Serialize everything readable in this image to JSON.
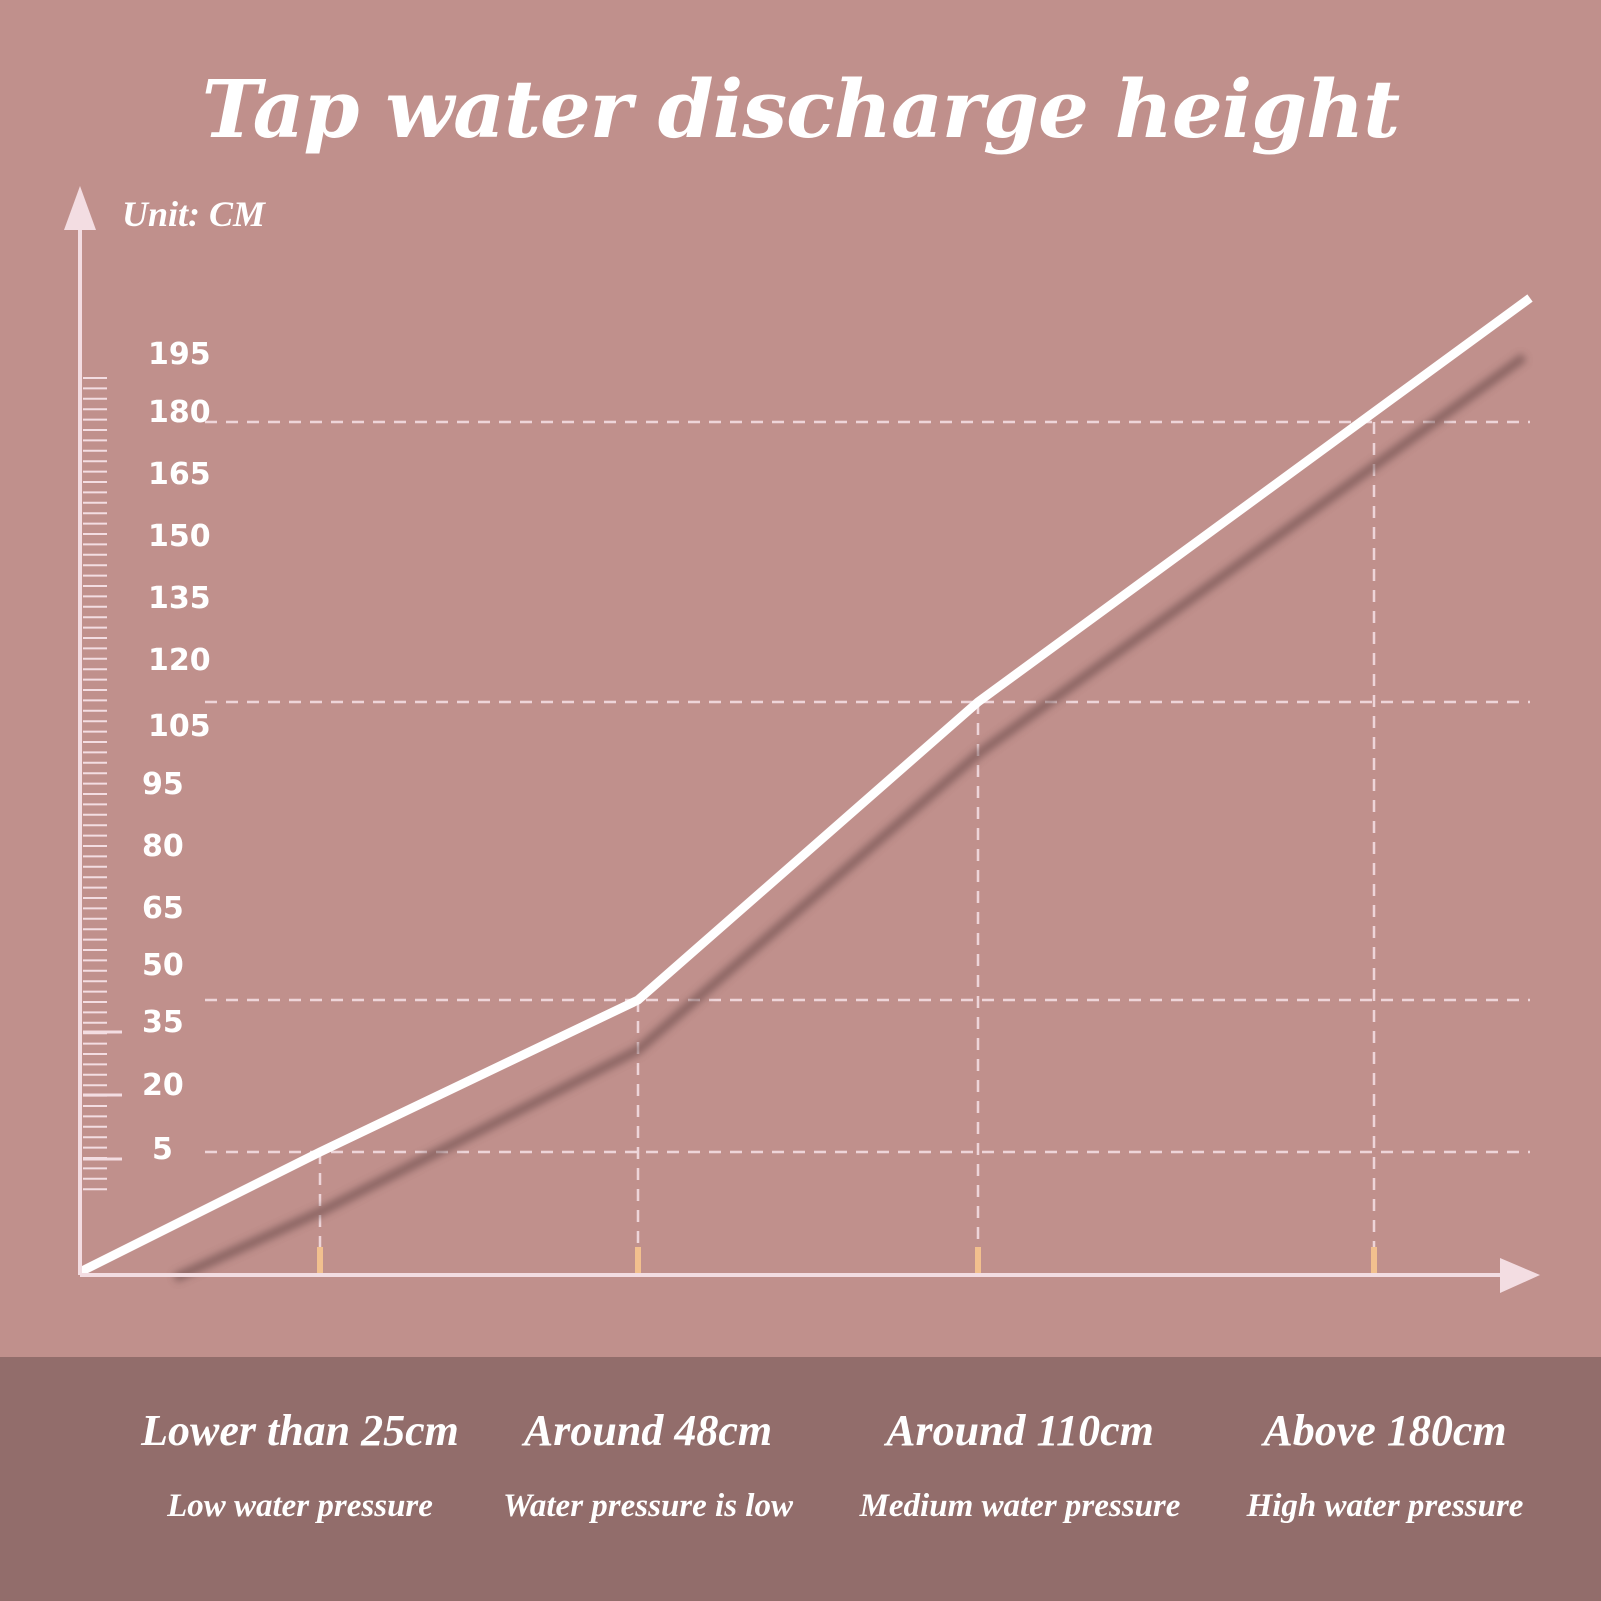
{
  "title": "Tap water discharge height",
  "chart_data": {
    "type": "line",
    "ylabel": "Unit: CM",
    "yticks": [
      5,
      20,
      35,
      50,
      65,
      80,
      95,
      105,
      120,
      135,
      150,
      165,
      180,
      195
    ],
    "ylim": [
      0,
      210
    ],
    "grid": "dashed reference lines",
    "categories": [
      {
        "name": "Lower than 25cm",
        "description": "Low water pressure",
        "value": 25
      },
      {
        "name": "Around 48cm",
        "description": "Water pressure is low",
        "value": 48
      },
      {
        "name": "Around 110cm",
        "description": "Medium water pressure",
        "value": 110
      },
      {
        "name": "Above 180cm",
        "description": "High water pressure",
        "value": 180
      }
    ],
    "series": [
      {
        "x": [
          0,
          25,
          48,
          110,
          180,
          210
        ],
        "y": [
          0,
          25,
          48,
          110,
          180,
          210
        ]
      }
    ]
  },
  "colors": {
    "background": "#c0908c",
    "band": "#926d6b",
    "line": "#ffffff",
    "axis": "#f3dde2",
    "marker": "#f2c08e"
  }
}
